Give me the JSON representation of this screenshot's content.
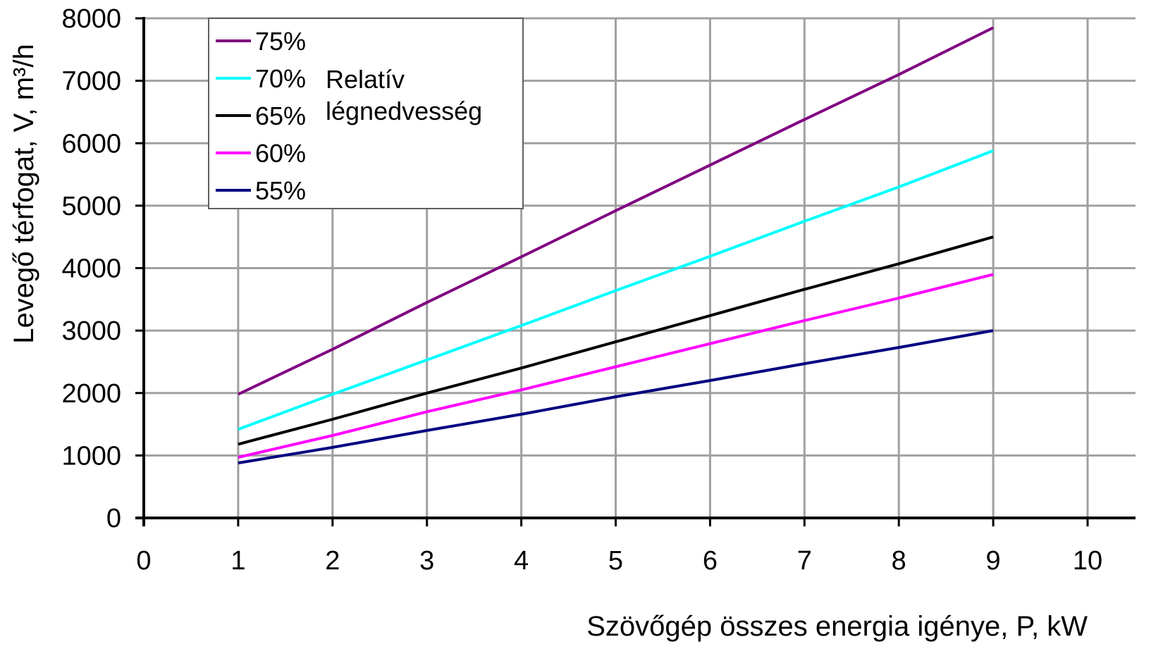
{
  "chart_data": {
    "type": "line",
    "xlabel": "Szövőgép összes energia igénye, P, kW",
    "ylabel": "Levegő térfogat, V, m³/h",
    "xlim": [
      0,
      10
    ],
    "ylim": [
      0,
      8000
    ],
    "x_ticks": [
      "0",
      "1",
      "2",
      "3",
      "4",
      "5",
      "6",
      "7",
      "8",
      "9",
      "10"
    ],
    "y_ticks": [
      "0",
      "1000",
      "2000",
      "3000",
      "4000",
      "5000",
      "6000",
      "7000",
      "8000"
    ],
    "grid": true,
    "legend_title": "Relatív légnedvesség",
    "legend_position": "top-left",
    "x": [
      1,
      2,
      3,
      4,
      5,
      6,
      7,
      8,
      9
    ],
    "series": [
      {
        "name": "75%",
        "color": "#800080",
        "values": [
          1980,
          2700,
          3450,
          4180,
          4920,
          5650,
          6380,
          7100,
          7850
        ]
      },
      {
        "name": "70%",
        "color": "#00ffff",
        "values": [
          1420,
          1980,
          2530,
          3080,
          3640,
          4190,
          4750,
          5300,
          5880
        ]
      },
      {
        "name": "65%",
        "color": "#000000",
        "values": [
          1180,
          1580,
          2000,
          2400,
          2820,
          3240,
          3660,
          4070,
          4500
        ]
      },
      {
        "name": "60%",
        "color": "#ff00ff",
        "values": [
          970,
          1320,
          1700,
          2050,
          2420,
          2790,
          3160,
          3520,
          3900
        ]
      },
      {
        "name": "55%",
        "color": "#000080",
        "values": [
          880,
          1130,
          1400,
          1660,
          1940,
          2200,
          2470,
          2730,
          3000
        ]
      }
    ]
  }
}
